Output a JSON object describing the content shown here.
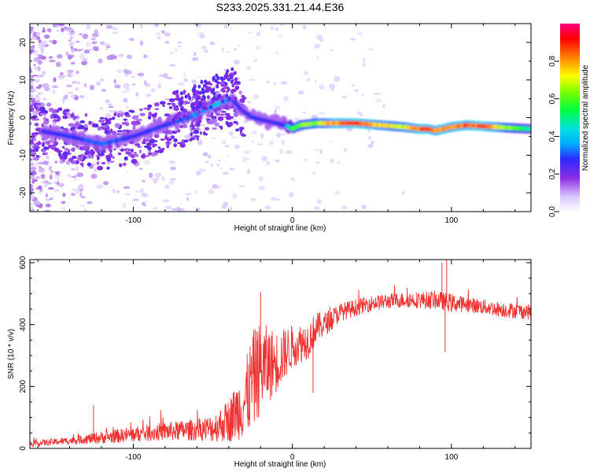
{
  "chart_data": [
    {
      "type": "heatmap",
      "title": "S233.2025.331.21.44.E36",
      "xlabel": "Height of straight line (km)",
      "ylabel": "Frequency (Hz)",
      "xlim": [
        -165,
        150
      ],
      "ylim": [
        -25,
        25
      ],
      "xticks": [
        -100,
        0,
        100
      ],
      "xtick_labels": [
        "-100",
        "0",
        "100"
      ],
      "yticks": [
        -20,
        -10,
        0,
        10,
        20
      ],
      "ytick_labels": [
        "-20",
        "-10",
        "0",
        "10",
        "20"
      ],
      "colorbar": {
        "label": "Normalized spectral amplitude",
        "range": [
          0,
          1
        ],
        "ticks": [
          0.0,
          0.2,
          0.4,
          0.6,
          0.8
        ],
        "tick_labels": [
          "0.0",
          "0.2",
          "0.4",
          "0.6",
          "0.8"
        ]
      },
      "ridge": {
        "x": [
          -165,
          -140,
          -120,
          -100,
          -80,
          -65,
          -55,
          -45,
          -38,
          -32,
          -25,
          -15,
          -5,
          0,
          5,
          15,
          25,
          40,
          55,
          70,
          80,
          85,
          90,
          95,
          100,
          110,
          120,
          135,
          150
        ],
        "freq": [
          -3,
          -5,
          -7,
          -5,
          -2,
          0,
          2,
          4,
          5,
          2,
          0,
          -1,
          -2,
          -3,
          -2,
          -1.5,
          -1.5,
          -1.5,
          -2,
          -2.5,
          -3,
          -3,
          -3.5,
          -3,
          -2.5,
          -2,
          -2.3,
          -2.7,
          -3
        ],
        "amp": [
          0.25,
          0.3,
          0.35,
          0.3,
          0.3,
          0.35,
          0.38,
          0.4,
          0.35,
          0.25,
          0.3,
          0.25,
          0.3,
          0.6,
          0.7,
          0.7,
          0.85,
          0.95,
          0.8,
          0.75,
          0.9,
          0.95,
          0.85,
          0.9,
          0.85,
          0.9,
          0.95,
          0.7,
          0.5
        ]
      }
    },
    {
      "type": "line",
      "xlabel": "Height of straight line (km)",
      "ylabel": "SNR (10 * v/v)",
      "xlim": [
        -165,
        150
      ],
      "ylim": [
        0,
        610
      ],
      "xticks": [
        -100,
        0,
        100
      ],
      "xtick_labels": [
        "-100",
        "0",
        "100"
      ],
      "yticks": [
        0,
        200,
        400,
        600
      ],
      "ytick_labels": [
        "0",
        "200",
        "400",
        "600"
      ],
      "color": "#ee3333",
      "envelope": {
        "x": [
          -165,
          -140,
          -120,
          -100,
          -80,
          -60,
          -50,
          -40,
          -30,
          -25,
          -20,
          -10,
          0,
          10,
          15,
          20,
          30,
          50,
          70,
          90,
          100,
          110,
          130,
          150
        ],
        "mean": [
          15,
          25,
          35,
          45,
          55,
          60,
          65,
          90,
          150,
          220,
          260,
          280,
          330,
          350,
          390,
          400,
          440,
          470,
          480,
          480,
          470,
          465,
          450,
          440
        ],
        "spread": [
          10,
          12,
          20,
          25,
          30,
          35,
          45,
          70,
          120,
          160,
          150,
          100,
          70,
          60,
          50,
          40,
          30,
          25,
          25,
          30,
          30,
          25,
          25,
          25
        ]
      },
      "spikes": [
        {
          "x": -20,
          "y": 505
        },
        {
          "x": -22,
          "y": 350
        },
        {
          "x": 94,
          "y": 600
        },
        {
          "x": 97,
          "y": 615
        },
        {
          "x": 96,
          "y": 310
        },
        {
          "x": 13,
          "y": 180
        },
        {
          "x": -125,
          "y": 140
        }
      ]
    }
  ]
}
